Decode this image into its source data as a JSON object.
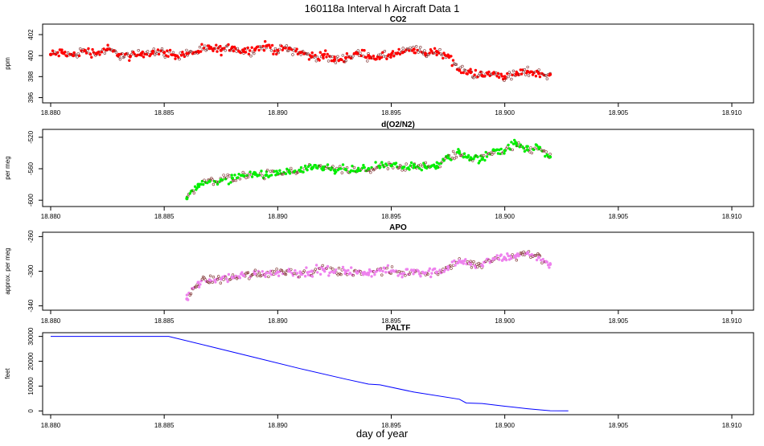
{
  "figure": {
    "title": "160118a   Interval h Aircraft Data 1",
    "xlabel": "day of year"
  },
  "chart_data": [
    {
      "type": "scatter",
      "title": "CO2",
      "xlabel": "",
      "ylabel": "ppm",
      "xlim": [
        18.88,
        18.91
      ],
      "ylim": [
        395.5,
        403.0
      ],
      "xticks": [
        "18.880",
        "18.885",
        "18.890",
        "18.895",
        "18.900",
        "18.905",
        "18.910"
      ],
      "yticks": [
        "396",
        "398",
        "400",
        "402"
      ],
      "color": "#ff0000",
      "series": [
        {
          "x": [
            18.88,
            18.8805,
            18.881,
            18.8815,
            18.882,
            18.8825,
            18.883,
            18.8835,
            18.884,
            18.8845,
            18.885,
            18.8855,
            18.886,
            18.8865,
            18.887,
            18.8875,
            18.888,
            18.8885,
            18.889,
            18.8895,
            18.89,
            18.8905,
            18.891,
            18.8915,
            18.892,
            18.8925,
            18.893,
            18.8935,
            18.894,
            18.8945,
            18.895,
            18.8955,
            18.896,
            18.8965,
            18.897,
            18.8975,
            18.898,
            18.8985,
            18.899,
            18.8995,
            18.9,
            18.9005,
            18.901,
            18.9015,
            18.902
          ],
          "values": [
            400.1,
            400.3,
            400.0,
            400.5,
            400.2,
            400.6,
            400.1,
            399.9,
            400.2,
            400.4,
            400.3,
            400.0,
            400.2,
            400.4,
            400.7,
            400.5,
            400.8,
            400.4,
            400.6,
            400.9,
            400.5,
            400.7,
            400.3,
            399.9,
            400.0,
            399.6,
            399.8,
            400.2,
            400.0,
            399.8,
            400.1,
            400.3,
            400.6,
            400.2,
            400.4,
            400.0,
            398.6,
            398.4,
            398.1,
            398.3,
            398.0,
            398.2,
            398.5,
            398.3,
            398.2
          ]
        }
      ]
    },
    {
      "type": "scatter",
      "title": "d(O2/N2)",
      "xlabel": "",
      "ylabel": "per meg",
      "xlim": [
        18.88,
        18.91
      ],
      "ylim": [
        -608,
        -510
      ],
      "xticks": [
        "18.880",
        "18.885",
        "18.890",
        "18.895",
        "18.900",
        "18.905",
        "18.910"
      ],
      "yticks": [
        "-600",
        "-560",
        "-520"
      ],
      "color": "#00ee00",
      "series": [
        {
          "x": [
            18.886,
            18.8865,
            18.887,
            18.8875,
            18.888,
            18.8885,
            18.889,
            18.8895,
            18.89,
            18.8905,
            18.891,
            18.8915,
            18.892,
            18.8925,
            18.893,
            18.8935,
            18.894,
            18.8945,
            18.895,
            18.8955,
            18.896,
            18.8965,
            18.897,
            18.8975,
            18.898,
            18.8985,
            18.899,
            18.8995,
            18.9,
            18.9005,
            18.901,
            18.9015,
            18.902
          ],
          "values": [
            -598,
            -580,
            -576,
            -574,
            -572,
            -569,
            -567,
            -568,
            -566,
            -564,
            -563,
            -560,
            -558,
            -562,
            -561,
            -563,
            -560,
            -558,
            -556,
            -559,
            -555,
            -558,
            -557,
            -546,
            -540,
            -546,
            -548,
            -536,
            -537,
            -528,
            -536,
            -533,
            -545
          ]
        }
      ]
    },
    {
      "type": "scatter",
      "title": "APO",
      "xlabel": "",
      "ylabel": "approx. per meg",
      "xlim": [
        18.88,
        18.91
      ],
      "ylim": [
        -345,
        -255
      ],
      "xticks": [
        "18.880",
        "18.885",
        "18.890",
        "18.895",
        "18.900",
        "18.905",
        "18.910"
      ],
      "yticks": [
        "-340",
        "-300",
        "-260"
      ],
      "color": "#ee82ee",
      "series": [
        {
          "x": [
            18.886,
            18.8865,
            18.887,
            18.8875,
            18.888,
            18.8885,
            18.889,
            18.8895,
            18.89,
            18.8905,
            18.891,
            18.8915,
            18.892,
            18.8925,
            18.893,
            18.8935,
            18.894,
            18.8945,
            18.895,
            18.8955,
            18.896,
            18.8965,
            18.897,
            18.8975,
            18.898,
            18.8985,
            18.899,
            18.8995,
            18.9,
            18.9005,
            18.901,
            18.9015,
            18.902
          ],
          "values": [
            -332,
            -313,
            -310,
            -309,
            -307,
            -305,
            -303,
            -302,
            -301,
            -300,
            -302,
            -300,
            -298,
            -301,
            -300,
            -302,
            -302,
            -299,
            -300,
            -303,
            -299,
            -302,
            -301,
            -295,
            -288,
            -292,
            -293,
            -286,
            -285,
            -282,
            -279,
            -284,
            -292
          ]
        }
      ]
    },
    {
      "type": "line",
      "title": "PALTF",
      "xlabel": "",
      "ylabel": "feet",
      "xlim": [
        18.88,
        18.91
      ],
      "ylim": [
        -1500,
        31500
      ],
      "xticks": [
        "18.880",
        "18.885",
        "18.890",
        "18.895",
        "18.900",
        "18.905",
        "18.910"
      ],
      "yticks": [
        "0",
        "10000",
        "20000",
        "30000"
      ],
      "color": "#0000ff",
      "series": [
        {
          "x": [
            18.88,
            18.8852,
            18.887,
            18.889,
            18.891,
            18.893,
            18.894,
            18.8945,
            18.896,
            18.898,
            18.8983,
            18.899,
            18.9,
            18.901,
            18.902,
            18.9028
          ],
          "values": [
            30000,
            30000,
            26000,
            21500,
            17000,
            12800,
            10800,
            10500,
            7600,
            4700,
            3200,
            3000,
            1900,
            900,
            100,
            50
          ]
        }
      ]
    }
  ]
}
